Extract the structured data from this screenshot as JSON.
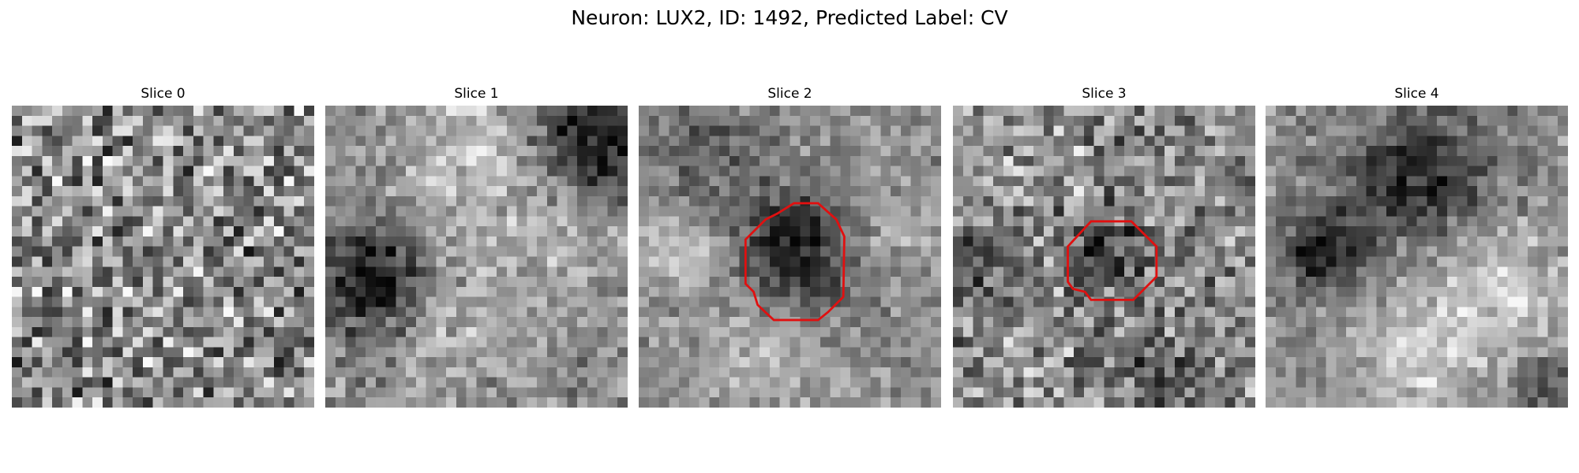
{
  "title": "Neuron: LUX2, ID: 1492, Predicted Label: CV",
  "panels": [
    {
      "title": "Slice 0"
    },
    {
      "title": "Slice 1"
    },
    {
      "title": "Slice 2"
    },
    {
      "title": "Slice 3"
    },
    {
      "title": "Slice 4"
    }
  ]
}
